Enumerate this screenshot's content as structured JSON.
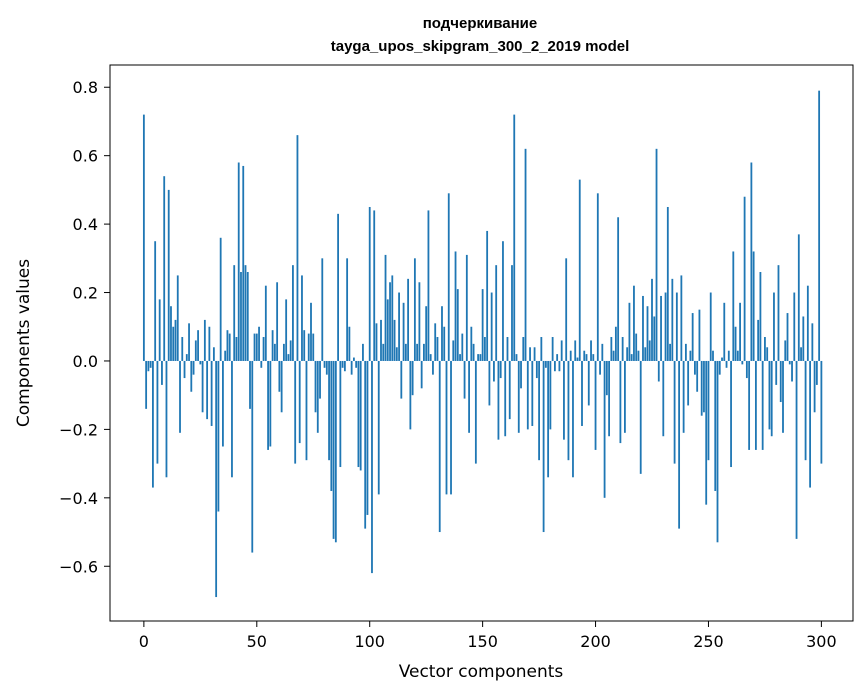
{
  "chart_data": {
    "type": "bar",
    "title": "подчеркивание",
    "subtitle": "tayga_upos_skipgram_300_2_2019 model",
    "xlabel": "Vector components",
    "ylabel": "Components values",
    "xlim": [
      -15,
      314
    ],
    "ylim": [
      -0.76,
      0.865
    ],
    "x_ticks": [
      0,
      50,
      100,
      150,
      200,
      250,
      300
    ],
    "x_tick_labels": [
      "0",
      "50",
      "100",
      "150",
      "200",
      "250",
      "300"
    ],
    "y_ticks": [
      -0.6,
      -0.4,
      -0.2,
      0.0,
      0.2,
      0.4,
      0.6,
      0.8
    ],
    "y_tick_labels": [
      "−0.6",
      "−0.4",
      "−0.2",
      "0.0",
      "0.2",
      "0.4",
      "0.6",
      "0.8"
    ],
    "bar_color": "#1f77b4",
    "values": [
      0.72,
      -0.14,
      -0.03,
      -0.02,
      -0.37,
      0.35,
      -0.3,
      0.18,
      -0.07,
      0.54,
      -0.34,
      0.5,
      0.16,
      0.1,
      0.12,
      0.25,
      -0.21,
      0.07,
      -0.05,
      0.02,
      0.11,
      -0.09,
      -0.04,
      0.06,
      0.09,
      -0.01,
      -0.15,
      0.12,
      -0.17,
      0.1,
      -0.19,
      0.04,
      -0.69,
      -0.44,
      0.36,
      -0.25,
      0.03,
      0.09,
      0.08,
      -0.34,
      0.28,
      0.07,
      0.58,
      0.26,
      0.57,
      0.28,
      0.26,
      -0.14,
      -0.56,
      0.08,
      0.08,
      0.1,
      -0.02,
      0.07,
      0.22,
      -0.26,
      -0.25,
      0.09,
      0.05,
      0.23,
      -0.09,
      -0.15,
      0.05,
      0.18,
      0.02,
      0.06,
      0.28,
      -0.3,
      0.66,
      -0.24,
      0.25,
      0.09,
      -0.29,
      0.08,
      0.17,
      0.08,
      -0.15,
      -0.21,
      -0.11,
      0.3,
      -0.02,
      -0.04,
      -0.29,
      -0.38,
      -0.52,
      -0.53,
      0.43,
      -0.31,
      -0.02,
      -0.03,
      0.3,
      0.1,
      -0.04,
      0.01,
      -0.02,
      -0.31,
      -0.32,
      0.05,
      -0.49,
      -0.45,
      0.45,
      -0.62,
      0.44,
      0.11,
      -0.39,
      0.12,
      0.05,
      0.31,
      0.18,
      0.23,
      0.25,
      0.12,
      0.04,
      0.2,
      -0.11,
      0.17,
      0.05,
      0.24,
      -0.2,
      -0.1,
      0.3,
      0.05,
      0.23,
      -0.08,
      0.05,
      0.16,
      0.44,
      0.02,
      -0.04,
      0.11,
      0.07,
      -0.5,
      0.16,
      0.1,
      -0.39,
      0.49,
      -0.39,
      0.06,
      0.32,
      0.21,
      0.02,
      0.08,
      -0.11,
      0.31,
      -0.21,
      0.1,
      0.05,
      -0.3,
      0.02,
      0.02,
      0.21,
      0.07,
      0.38,
      -0.13,
      0.2,
      -0.06,
      0.28,
      -0.23,
      -0.05,
      0.35,
      -0.22,
      0.07,
      -0.17,
      0.28,
      0.72,
      0.02,
      -0.21,
      -0.08,
      0.07,
      0.62,
      -0.2,
      0.04,
      -0.19,
      0.04,
      -0.05,
      -0.29,
      0.07,
      -0.5,
      -0.02,
      -0.34,
      -0.2,
      0.07,
      -0.03,
      0.02,
      -0.03,
      0.06,
      -0.23,
      0.3,
      -0.29,
      0.03,
      -0.34,
      0.06,
      0.01,
      0.53,
      -0.19,
      0.03,
      0.02,
      -0.13,
      0.06,
      0.02,
      -0.26,
      0.49,
      -0.04,
      0.05,
      -0.4,
      -0.1,
      -0.22,
      0.07,
      0.03,
      0.1,
      0.42,
      -0.24,
      0.07,
      -0.21,
      0.04,
      0.17,
      0.02,
      0.22,
      0.08,
      0.03,
      -0.33,
      0.19,
      0.04,
      0.16,
      0.06,
      0.24,
      0.13,
      0.62,
      -0.06,
      0.19,
      -0.22,
      0.2,
      0.45,
      0.05,
      0.24,
      -0.3,
      0.2,
      -0.49,
      0.25,
      -0.21,
      0.05,
      -0.13,
      0.03,
      0.14,
      -0.04,
      -0.09,
      0.15,
      -0.16,
      -0.15,
      -0.42,
      -0.29,
      0.2,
      0.03,
      -0.38,
      -0.53,
      -0.04,
      0.01,
      0.17,
      -0.02,
      0.03,
      -0.31,
      0.32,
      0.1,
      0.03,
      0.17,
      -0.01,
      0.48,
      -0.05,
      -0.26,
      0.58,
      0.32,
      -0.26,
      0.12,
      0.26,
      -0.26,
      0.07,
      0.04,
      -0.2,
      -0.22,
      0.2,
      -0.07,
      0.28,
      -0.12,
      -0.21,
      0.06,
      0.14,
      -0.01,
      -0.06,
      0.2,
      -0.52,
      0.37,
      0.04,
      0.13,
      -0.29,
      0.22,
      -0.37,
      0.11,
      -0.15,
      -0.07,
      0.79,
      -0.3
    ]
  }
}
